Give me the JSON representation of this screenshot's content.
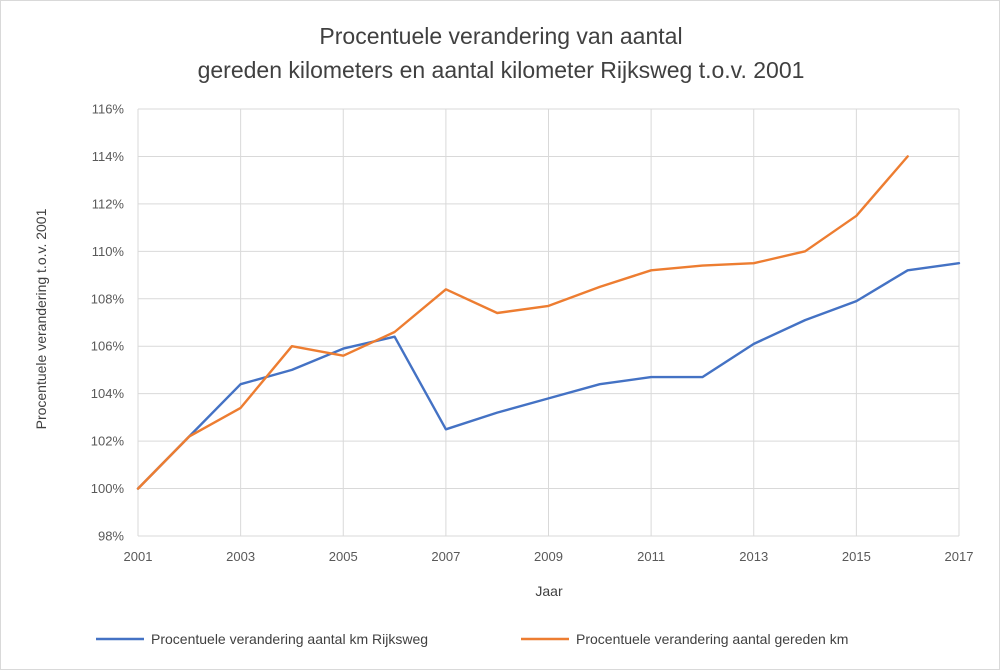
{
  "chart_data": {
    "type": "line",
    "title_line1": "Procentuele verandering van aantal",
    "title_line2": "gereden kilometers en aantal kilometer Rijksweg t.o.v. 2001",
    "xlabel": "Jaar",
    "ylabel": "Procentuele verandering t.o.v. 2001",
    "xlim": [
      2001,
      2017
    ],
    "ylim": [
      98,
      116
    ],
    "x_ticks": [
      "2001",
      "2003",
      "2005",
      "2007",
      "2009",
      "2011",
      "2013",
      "2015",
      "2017"
    ],
    "y_ticks": [
      "98%",
      "100%",
      "102%",
      "104%",
      "106%",
      "108%",
      "110%",
      "112%",
      "114%",
      "116%"
    ],
    "grid": true,
    "legend_position": "bottom",
    "series": [
      {
        "name": "Procentuele verandering aantal km Rijksweg",
        "color": "#4472c4",
        "x": [
          2001,
          2002,
          2003,
          2004,
          2005,
          2006,
          2007,
          2008,
          2009,
          2010,
          2011,
          2012,
          2013,
          2014,
          2015,
          2016,
          2017
        ],
        "values": [
          100.0,
          102.2,
          104.4,
          105.0,
          105.9,
          106.4,
          102.5,
          103.2,
          103.8,
          104.4,
          104.7,
          104.7,
          106.1,
          107.1,
          107.9,
          109.2,
          109.5
        ]
      },
      {
        "name": "Procentuele verandering aantal gereden km",
        "color": "#ed7d31",
        "x": [
          2001,
          2002,
          2003,
          2004,
          2005,
          2006,
          2007,
          2008,
          2009,
          2010,
          2011,
          2012,
          2013,
          2014,
          2015,
          2016
        ],
        "values": [
          100.0,
          102.2,
          103.4,
          106.0,
          105.6,
          106.6,
          108.4,
          107.4,
          107.7,
          108.5,
          109.2,
          109.4,
          109.5,
          110.0,
          111.5,
          114.0
        ]
      }
    ]
  }
}
